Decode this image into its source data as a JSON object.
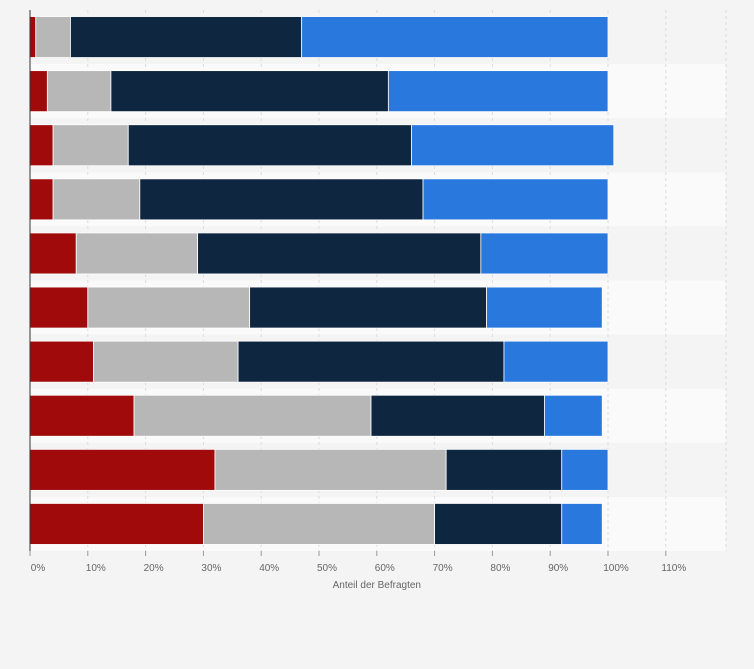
{
  "chart_data": {
    "type": "bar",
    "orientation": "horizontal",
    "stacked": true,
    "xlabel": "Anteil der Befragten",
    "xlim": [
      0,
      120
    ],
    "xticks": [
      0,
      10,
      20,
      30,
      40,
      50,
      60,
      70,
      80,
      90,
      100,
      110
    ],
    "tick_suffix": "%",
    "grid": true,
    "row_count": 10,
    "series": [
      {
        "color": "#a10a0a",
        "values": [
          1,
          3,
          4,
          4,
          8,
          10,
          11,
          18,
          32,
          30
        ]
      },
      {
        "color": "#b7b7b7",
        "values": [
          6,
          11,
          13,
          15,
          21,
          28,
          25,
          41,
          40,
          40
        ]
      },
      {
        "color": "#0f2640",
        "values": [
          40,
          48,
          49,
          49,
          49,
          41,
          46,
          30,
          20,
          22
        ]
      },
      {
        "color": "#2878de",
        "values": [
          53,
          38,
          35,
          32,
          22,
          20,
          18,
          10,
          8,
          7
        ]
      }
    ]
  }
}
